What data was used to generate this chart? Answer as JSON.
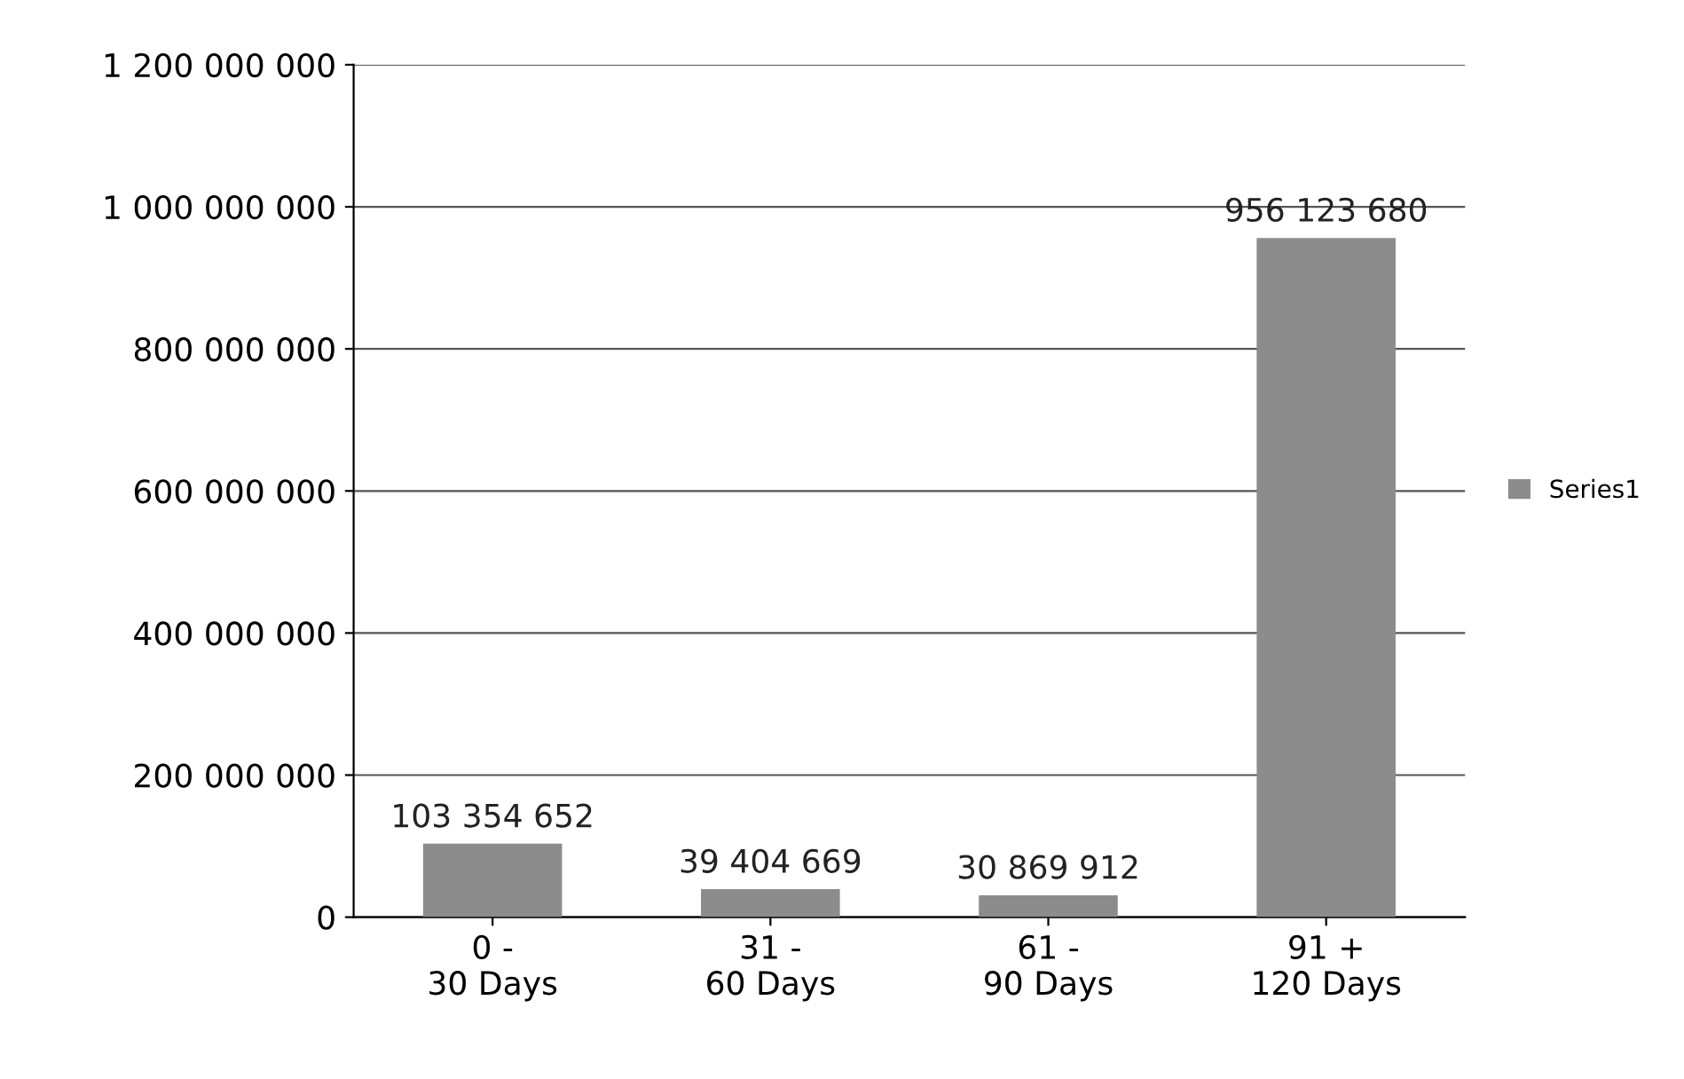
{
  "chart_data": {
    "type": "bar",
    "categories": [
      "0 -\n30 Days",
      "31 -\n60 Days",
      "61 -\n90 Days",
      "91 +\n120 Days"
    ],
    "series": [
      {
        "name": "Series1",
        "color": "#8c8c8c",
        "values": [
          103354652,
          39404669,
          30869912,
          956123680
        ],
        "value_labels": [
          "103 354 652",
          "39 404 669",
          "30 869 912",
          "956 123 680"
        ]
      }
    ],
    "ylim": [
      0,
      1200000000
    ],
    "yticks": [
      {
        "value": 0,
        "label": "0"
      },
      {
        "value": 200000000,
        "label": "200 000 000"
      },
      {
        "value": 400000000,
        "label": "400 000 000"
      },
      {
        "value": 600000000,
        "label": "600 000 000"
      },
      {
        "value": 800000000,
        "label": "800 000 000"
      },
      {
        "value": 1000000000,
        "label": "1 000 000 000"
      },
      {
        "value": 1200000000,
        "label": "1 200 000 000"
      }
    ],
    "grid": "y",
    "legend": "right"
  }
}
